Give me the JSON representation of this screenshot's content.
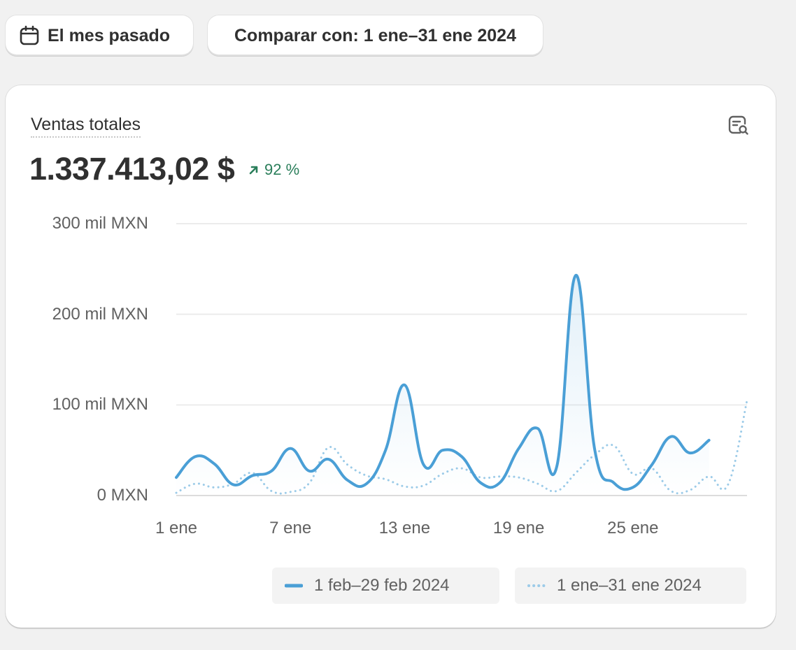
{
  "toolbar": {
    "date_range_label": "El mes pasado",
    "compare_label": "Comparar con: 1 ene–31 ene 2024"
  },
  "metric": {
    "title": "Ventas totales",
    "value": "1.337.413,02 $",
    "change": "92 %",
    "change_direction": "up",
    "change_color": "#2a7e5a"
  },
  "icons": {
    "date": "calendar-icon",
    "explore": "explore-report-icon",
    "change": "arrow-up-right-icon"
  },
  "chart_data": {
    "type": "line",
    "y_tick_labels": [
      "0 MXN",
      "100 mil MXN",
      "200 mil MXN",
      "300 mil MXN"
    ],
    "y_tick_values": [
      0,
      100000,
      200000,
      300000
    ],
    "ylim": [
      0,
      300000
    ],
    "x_tick_labels": [
      "1 ene",
      "7 ene",
      "13 ene",
      "19 ene",
      "25 ene"
    ],
    "x_tick_days": [
      1,
      7,
      13,
      19,
      25
    ],
    "xlim": [
      1,
      31
    ],
    "grid": true,
    "legend_position": "bottom-right",
    "series": [
      {
        "name": "1 feb–29 feb 2024",
        "style": "solid",
        "color": "#4a9fd6",
        "area": true,
        "x": [
          1,
          2,
          3,
          4,
          5,
          6,
          7,
          8,
          9,
          10,
          11,
          12,
          13,
          14,
          15,
          16,
          17,
          18,
          19,
          20,
          21,
          22,
          23,
          24,
          25,
          26,
          27,
          28,
          29
        ],
        "values": [
          20000,
          43000,
          35000,
          12000,
          22000,
          27000,
          52000,
          27000,
          40000,
          17000,
          13000,
          50000,
          122000,
          34000,
          50000,
          43000,
          14000,
          14000,
          52000,
          74000,
          32000,
          243000,
          50000,
          14000,
          9000,
          34000,
          65000,
          47000,
          61000
        ]
      },
      {
        "name": "1 ene–31 ene 2024",
        "style": "dotted",
        "color": "#9ccbe8",
        "area": false,
        "x": [
          1,
          2,
          3,
          4,
          5,
          6,
          7,
          8,
          9,
          10,
          11,
          12,
          13,
          14,
          15,
          16,
          17,
          18,
          19,
          20,
          21,
          22,
          23,
          24,
          25,
          26,
          27,
          28,
          29,
          30,
          31
        ],
        "values": [
          3000,
          13000,
          9000,
          13000,
          25000,
          5000,
          4000,
          14000,
          53000,
          34000,
          22000,
          18000,
          10000,
          11000,
          24000,
          30000,
          20000,
          21000,
          20000,
          13000,
          5000,
          25000,
          45000,
          55000,
          24000,
          30000,
          5000,
          6000,
          21000,
          12000,
          105000
        ]
      }
    ]
  }
}
